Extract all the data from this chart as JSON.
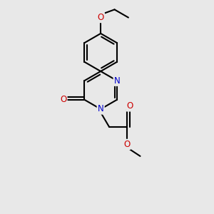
{
  "background_color": "#e8e8e8",
  "bond_color": "#000000",
  "N_color": "#0000cc",
  "O_color": "#cc0000",
  "bond_width": 1.5,
  "font_size": 8.5,
  "xlim": [
    -1.2,
    1.5
  ],
  "ylim": [
    -2.2,
    2.8
  ]
}
